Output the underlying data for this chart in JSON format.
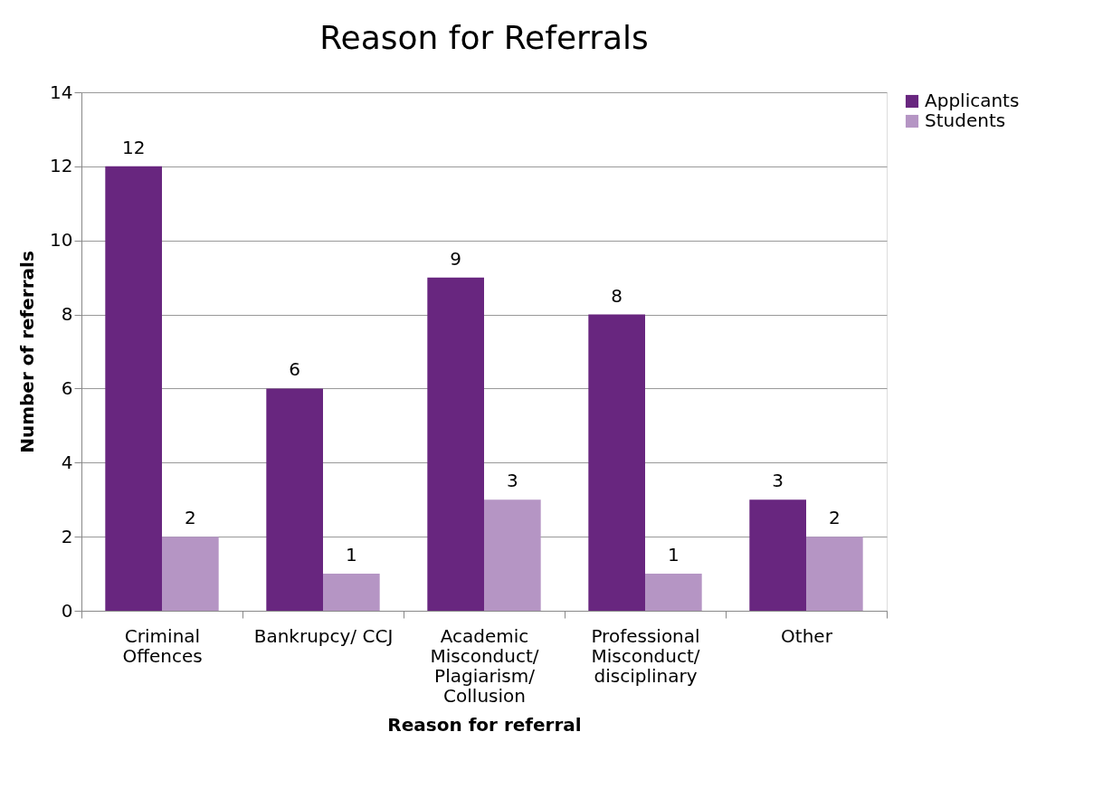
{
  "chart_data": {
    "type": "bar",
    "title": "Reason for Referrals",
    "xlabel": "Reason for referral",
    "ylabel": "Number of referrals",
    "categories": [
      "Criminal\nOffences",
      "Bankrupcy/ CCJ",
      "Academic\nMisconduct/\nPlagiarism/\nCollusion",
      "Professional\nMisconduct/\ndisciplinary",
      "Other"
    ],
    "series": [
      {
        "name": "Applicants",
        "color": "#68267f",
        "values": [
          12,
          6,
          9,
          8,
          3
        ]
      },
      {
        "name": "Students",
        "color": "#b595c4",
        "values": [
          2,
          1,
          3,
          1,
          2
        ]
      }
    ],
    "ylim": [
      0,
      14
    ],
    "yticks": [
      0,
      2,
      4,
      6,
      8,
      10,
      12,
      14
    ],
    "grid": "y",
    "legend": "right",
    "data_labels": true
  }
}
